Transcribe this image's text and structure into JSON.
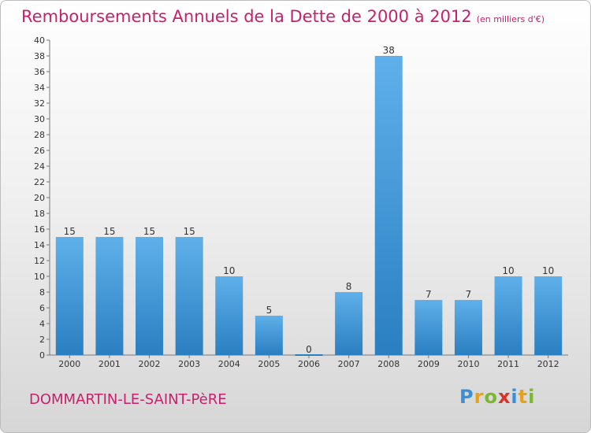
{
  "header": {
    "title": "Remboursements Annuels de la Dette de 2000 à 2012",
    "unit": "(en milliers d'€)"
  },
  "footer": {
    "town": "DOMMARTIN-LE-SAINT-PèRE",
    "brand_letters": [
      "P",
      "r",
      "o",
      "x",
      "i",
      "t",
      "i"
    ]
  },
  "colors": {
    "title": "#c8206c",
    "bar_top": "#5fb0ea",
    "bar_bottom": "#2a7fc1"
  },
  "chart_data": {
    "type": "bar",
    "title": "Remboursements Annuels de la Dette de 2000 à 2012",
    "xlabel": "",
    "ylabel": "",
    "categories": [
      "2000",
      "2001",
      "2002",
      "2003",
      "2004",
      "2005",
      "2006",
      "2007",
      "2008",
      "2009",
      "2010",
      "2011",
      "2012"
    ],
    "values": [
      15,
      15,
      15,
      15,
      10,
      5,
      0,
      8,
      38,
      7,
      7,
      10,
      10
    ],
    "ylim": [
      0,
      40
    ],
    "ytick_step": 2,
    "grid": false,
    "legend": "none"
  }
}
